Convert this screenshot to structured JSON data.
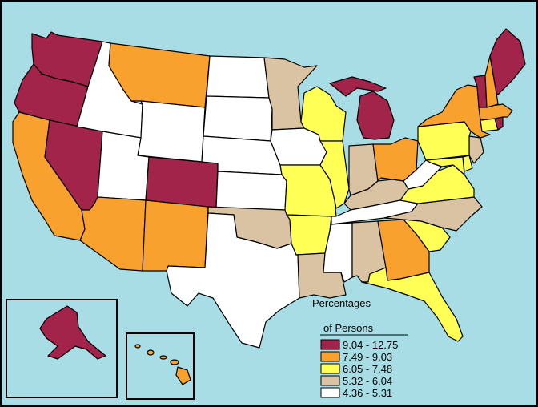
{
  "legend": {
    "title_line1": "Percentages",
    "title_line2": "of Persons",
    "classes": [
      {
        "key": "c1",
        "label": "9.04 - 12.75",
        "color": "#a3244a"
      },
      {
        "key": "c2",
        "label": "7.49 - 9.03",
        "color": "#f8a12e"
      },
      {
        "key": "c3",
        "label": "6.05 - 7.48",
        "color": "#ffff55"
      },
      {
        "key": "c4",
        "label": "5.32 - 6.04",
        "color": "#d9c3a2"
      },
      {
        "key": "c5",
        "label": "4.36 - 5.31",
        "color": "#ffffff"
      }
    ]
  },
  "map_colors": {
    "water": "#a8dde6",
    "border": "#000000"
  },
  "states": {
    "washington": "c1",
    "oregon": "c1",
    "california": "c2",
    "nevada": "c1",
    "idaho": "c5",
    "montana": "c2",
    "wyoming": "c5",
    "utah": "c5",
    "arizona": "c2",
    "colorado": "c1",
    "new-mexico": "c2",
    "north-dakota": "c5",
    "south-dakota": "c5",
    "nebraska": "c5",
    "kansas": "c5",
    "oklahoma": "c4",
    "texas": "c5",
    "minnesota": "c4",
    "iowa": "c5",
    "missouri": "c3",
    "arkansas": "c3",
    "louisiana": "c4",
    "wisconsin": "c3",
    "illinois": "c3",
    "michigan": "c1",
    "indiana": "c4",
    "ohio": "c2",
    "kentucky": "c4",
    "tennessee": "c5",
    "mississippi": "c5",
    "alabama": "c4",
    "georgia": "c2",
    "florida": "c3",
    "south-carolina": "c3",
    "north-carolina": "c4",
    "virginia": "c3",
    "west-virginia": "c5",
    "maryland": "c3",
    "delaware": "c3",
    "new-jersey": "c4",
    "pennsylvania": "c3",
    "new-york": "c2",
    "connecticut": "c3",
    "rhode-island": "c1",
    "massachusetts": "c2",
    "vermont": "c1",
    "new-hampshire": "c2",
    "maine": "c1",
    "alaska": "c1",
    "hawaii": "c2"
  }
}
